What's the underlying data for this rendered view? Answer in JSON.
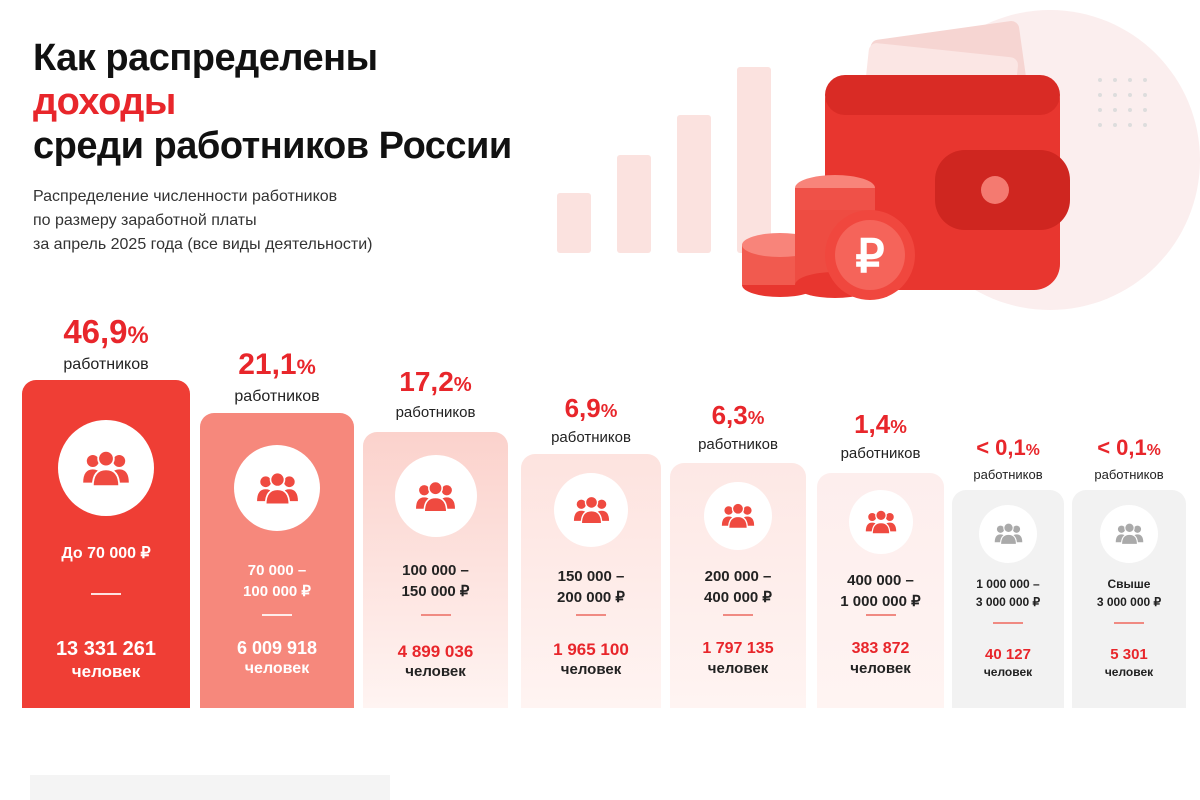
{
  "header": {
    "title_line1": "Как распределены",
    "title_line2": "доходы",
    "title_line3": "среди работников России",
    "subtitle_line1": "Распределение численности работников",
    "subtitle_line2": "по размеру заработной платы",
    "subtitle_line3": "за апрель 2025 года (все виды деятельности)"
  },
  "colors": {
    "accent": "#e8262b",
    "card1": "#ef3e35",
    "card2": "#f6887c",
    "card3": "#fbd2cc",
    "card4": "#fde3df",
    "card5": "#fde8e5",
    "card6": "#fdeeed",
    "card_gray": "#f2f2f2"
  },
  "chart_data": {
    "type": "bar",
    "categories": [
      "До 70 000 ₽",
      "70 000 – 100 000 ₽",
      "100 000 – 150 000 ₽",
      "150 000 – 200 000 ₽",
      "200 000 – 400 000 ₽",
      "400 000 – 1 000 000 ₽",
      "1 000 000 – 3 000 000 ₽",
      "Свыше 3 000 000 ₽"
    ],
    "series": [
      {
        "values": [
          46.9,
          21.1,
          17.2,
          6.9,
          6.3,
          1.4,
          0.1,
          0.1
        ]
      }
    ],
    "bars": [
      {
        "pct": "46,9",
        "sign": "%",
        "prefix": "",
        "label": "работников",
        "range": "До 70 000 ₽",
        "count": "13 331 261",
        "unit": "человек",
        "icon": "people-group-icon"
      },
      {
        "pct": "21,1",
        "sign": "%",
        "prefix": "",
        "label": "работников",
        "range": "70 000 –\n100 000 ₽",
        "count": "6 009 918",
        "unit": "человек",
        "icon": "people-group-icon"
      },
      {
        "pct": "17,2",
        "sign": "%",
        "prefix": "",
        "label": "работников",
        "range": "100 000 –\n150 000 ₽",
        "count": "4 899 036",
        "unit": "человек",
        "icon": "people-group-icon"
      },
      {
        "pct": "6,9",
        "sign": "%",
        "prefix": "",
        "label": "работников",
        "range": "150 000 –\n200 000 ₽",
        "count": "1 965 100",
        "unit": "человек",
        "icon": "people-group-icon"
      },
      {
        "pct": "6,3",
        "sign": "%",
        "prefix": "",
        "label": "работников",
        "range": "200 000 –\n400 000 ₽",
        "count": "1 797 135",
        "unit": "человек",
        "icon": "people-group-icon"
      },
      {
        "pct": "1,4",
        "sign": "%",
        "prefix": "",
        "label": "работников",
        "range": "400 000 –\n1 000 000 ₽",
        "count": "383 872",
        "unit": "человек",
        "icon": "people-group-icon"
      },
      {
        "pct": "0,1",
        "sign": "%",
        "prefix": "< ",
        "label": "работников",
        "range": "1 000 000 –\n3 000 000 ₽",
        "count": "40 127",
        "unit": "человек",
        "icon": "people-group-icon"
      },
      {
        "pct": "0,1",
        "sign": "%",
        "prefix": "< ",
        "label": "работников",
        "range": "Свыше\n3 000 000 ₽",
        "count": "5 301",
        "unit": "человек",
        "icon": "people-group-icon"
      }
    ]
  }
}
